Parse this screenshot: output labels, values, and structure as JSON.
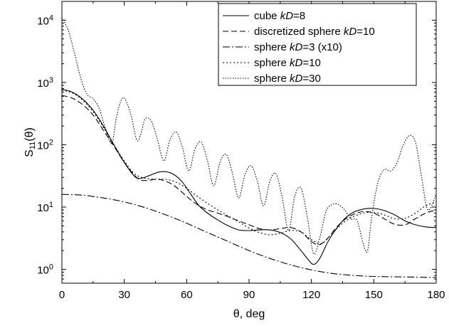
{
  "chart_data": {
    "type": "line",
    "xlabel": "θ, deg",
    "ylabel": "S11(θ)",
    "ylabel_main": "S",
    "ylabel_sub": "11",
    "ylabel_paren": "(θ)",
    "xlim": [
      0,
      180
    ],
    "ylim": [
      0.6,
      20000
    ],
    "yscale": "log",
    "x_ticks": [
      0,
      30,
      60,
      90,
      120,
      150,
      180
    ],
    "x_tick_labels": [
      "0",
      "30",
      "60",
      "90",
      "120",
      "150",
      "180"
    ],
    "y_ticks": [
      {
        "value": 1,
        "base": "10",
        "exp": "0"
      },
      {
        "value": 10,
        "base": "10",
        "exp": "1"
      },
      {
        "value": 100,
        "base": "10",
        "exp": "2"
      },
      {
        "value": 1000,
        "base": "10",
        "exp": "3"
      },
      {
        "value": 10000,
        "base": "10",
        "exp": "4"
      }
    ],
    "grid": false,
    "legend_position": "top-right",
    "series": [
      {
        "name": "cube kD=8",
        "label_pre": "cube ",
        "label_it": "kD",
        "label_post": "=8",
        "dash": "",
        "x": [
          0,
          5,
          10,
          15,
          20,
          25,
          30,
          35,
          38,
          42,
          46,
          50,
          54,
          58,
          62,
          66,
          70,
          75,
          80,
          85,
          90,
          95,
          100,
          105,
          110,
          115,
          118,
          121,
          124,
          128,
          132,
          136,
          140,
          145,
          150,
          155,
          160,
          165,
          170,
          175,
          180
        ],
        "y": [
          780,
          700,
          540,
          360,
          200,
          100,
          52,
          31,
          29,
          32,
          36,
          37,
          33,
          25,
          16,
          10.5,
          8,
          6.2,
          5,
          4.3,
          4.2,
          4.3,
          4.3,
          3.9,
          3.1,
          2,
          1.5,
          1.2,
          1.5,
          2.8,
          4.5,
          6.5,
          8.2,
          9.3,
          9.5,
          8.8,
          7.5,
          6,
          5.2,
          4.8,
          4.7
        ]
      },
      {
        "name": "discretized sphere kD=10",
        "label_pre": "discretized sphere ",
        "label_it": "kD",
        "label_post": "=10",
        "dash": "8,4",
        "x": [
          0,
          5,
          10,
          15,
          20,
          25,
          30,
          35,
          38,
          42,
          46,
          50,
          54,
          58,
          62,
          66,
          70,
          75,
          80,
          85,
          90,
          95,
          100,
          105,
          110,
          115,
          120,
          124,
          128,
          132,
          136,
          140,
          145,
          150,
          155,
          160,
          165,
          170,
          175,
          180
        ],
        "y": [
          620,
          560,
          440,
          300,
          170,
          95,
          52,
          32,
          27,
          27,
          28,
          26,
          22,
          17,
          13,
          10.5,
          9,
          8,
          7,
          6,
          5.2,
          4.5,
          4.3,
          4.5,
          4.7,
          4,
          2.8,
          2.5,
          3.2,
          4.7,
          6.3,
          7.6,
          8.5,
          8,
          6.5,
          5.3,
          5.2,
          6.5,
          8,
          9
        ]
      },
      {
        "name": "sphere kD=3 (x10)",
        "label_pre": "sphere ",
        "label_it": "kD",
        "label_post": "=3 (x10)",
        "dash": "10,3,2,3",
        "x": [
          0,
          10,
          20,
          30,
          40,
          50,
          60,
          70,
          80,
          90,
          100,
          110,
          120,
          130,
          140,
          150,
          160,
          170,
          180
        ],
        "y": [
          16,
          15.5,
          14,
          12.1,
          9.8,
          7.5,
          5.5,
          3.9,
          2.8,
          2,
          1.5,
          1.18,
          0.98,
          0.86,
          0.8,
          0.77,
          0.76,
          0.75,
          0.74
        ]
      },
      {
        "name": "sphere kD=10",
        "label_pre": "sphere ",
        "label_it": "kD",
        "label_post": "=10",
        "dash": "2,3",
        "x": [
          0,
          5,
          10,
          15,
          20,
          25,
          30,
          35,
          40,
          45,
          50,
          55,
          60,
          65,
          70,
          75,
          80,
          85,
          90,
          95,
          100,
          105,
          110,
          115,
          120,
          125,
          130,
          135,
          140,
          145,
          150,
          155,
          160,
          165,
          170,
          175,
          180
        ],
        "y": [
          750,
          680,
          520,
          340,
          190,
          100,
          55,
          34,
          29,
          28,
          28,
          25,
          20,
          15,
          11.5,
          9,
          7.2,
          5.8,
          4.6,
          3.9,
          3.6,
          3.8,
          4.2,
          4,
          3,
          2.6,
          3.8,
          5.5,
          7,
          8,
          8.2,
          7.5,
          6.5,
          6.6,
          8,
          10.5,
          12
        ]
      },
      {
        "name": "sphere kD=30",
        "label_pre": "sphere ",
        "label_it": "kD",
        "label_post": "=30",
        "dash": "1.5,2",
        "x": [
          0,
          3,
          6,
          9,
          12,
          15,
          18,
          21,
          24,
          26,
          28,
          30,
          33,
          36,
          38,
          40,
          43,
          46,
          49,
          52,
          55,
          58,
          61,
          64,
          67,
          70,
          73,
          76,
          79,
          82,
          85,
          88,
          91,
          94,
          97,
          100,
          103,
          106,
          109,
          112,
          115,
          118,
          121,
          124,
          127,
          130,
          133,
          136,
          139,
          142,
          145,
          147,
          149,
          152,
          155,
          158,
          161,
          164,
          167,
          170,
          173,
          176,
          180
        ],
        "y": [
          11000,
          7000,
          3000,
          1200,
          650,
          550,
          380,
          180,
          105,
          250,
          470,
          560,
          320,
          120,
          150,
          260,
          240,
          120,
          55,
          120,
          160,
          90,
          38,
          85,
          110,
          55,
          22,
          52,
          70,
          35,
          14,
          33,
          46,
          26,
          10.5,
          26,
          34,
          14,
          4.2,
          15,
          20,
          7,
          1.8,
          3.2,
          8.5,
          11,
          11,
          9,
          6.5,
          6,
          2.5,
          2,
          7,
          25,
          40,
          38,
          50,
          95,
          140,
          110,
          30,
          9,
          16
        ]
      }
    ]
  }
}
